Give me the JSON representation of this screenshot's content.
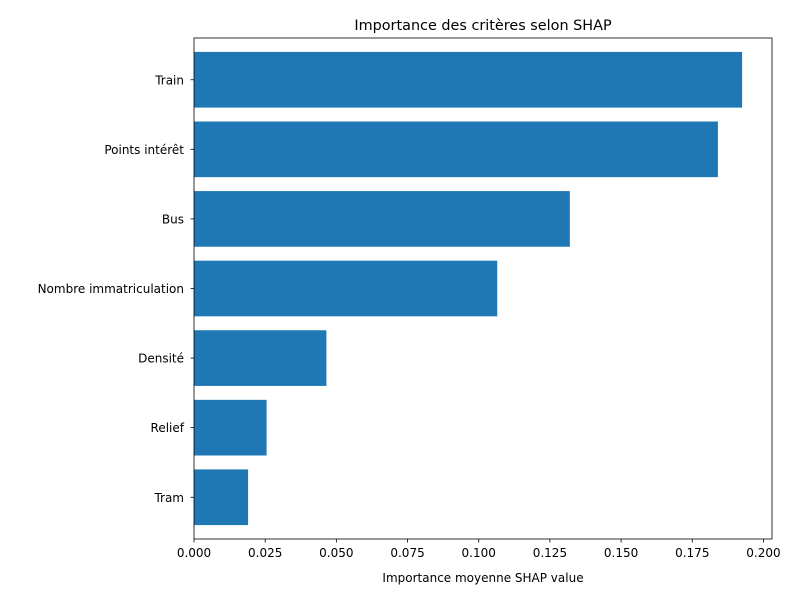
{
  "chart_data": {
    "type": "bar",
    "orientation": "horizontal",
    "title": "Importance des critères selon SHAP",
    "xlabel": "Importance moyenne SHAP value",
    "ylabel": "",
    "categories": [
      "Tram",
      "Relief",
      "Densité",
      "Nombre immatriculation",
      "Bus",
      "Points intérêt",
      "Train"
    ],
    "values": [
      0.019,
      0.0255,
      0.0465,
      0.1065,
      0.132,
      0.184,
      0.1925
    ],
    "xlim": [
      0,
      0.203
    ],
    "xticks": [
      0.0,
      0.025,
      0.05,
      0.075,
      0.1,
      0.125,
      0.15,
      0.175,
      0.2
    ],
    "xtick_labels": [
      "0.000",
      "0.025",
      "0.050",
      "0.075",
      "0.100",
      "0.125",
      "0.150",
      "0.175",
      "0.200"
    ],
    "bar_color": "#1f77b4",
    "grid": false,
    "legend": false
  }
}
